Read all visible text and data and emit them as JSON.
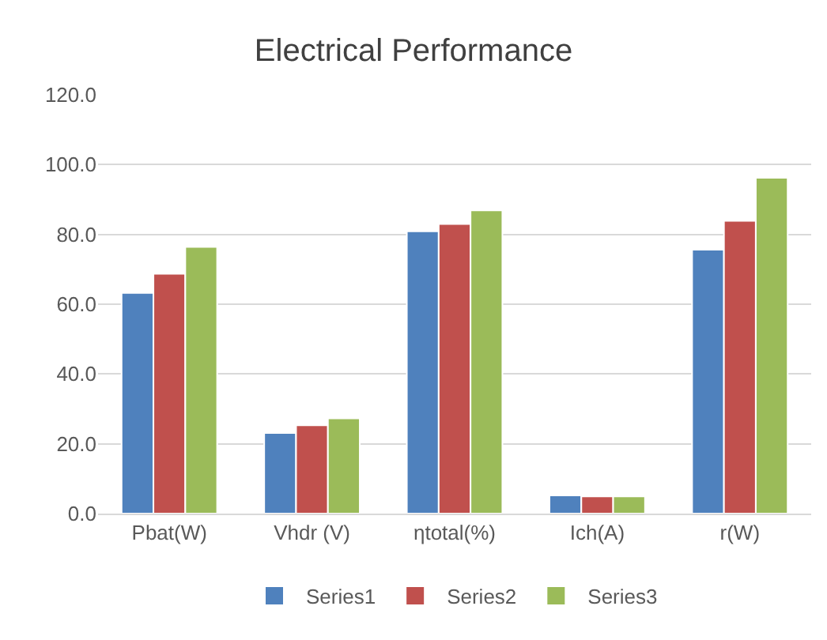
{
  "chart_data": {
    "type": "bar",
    "title": "Electrical Performance",
    "categories": [
      "Pbat(W)",
      "Vhdr (V)",
      "ηtotal(%)",
      "Ich(A)",
      "r(W)"
    ],
    "series": [
      {
        "name": "Series1",
        "color": "#4f81bd",
        "values": [
          63.2,
          23.1,
          80.9,
          5.2,
          75.6
        ]
      },
      {
        "name": "Series2",
        "color": "#c0504d",
        "values": [
          68.7,
          25.3,
          83.0,
          4.9,
          83.9
        ]
      },
      {
        "name": "Series3",
        "color": "#9bbb59",
        "values": [
          76.4,
          27.3,
          86.9,
          4.9,
          96.2
        ]
      }
    ],
    "ylim": [
      0,
      120
    ],
    "yticks": [
      {
        "value": 0,
        "label": "0.0"
      },
      {
        "value": 20,
        "label": "20.0"
      },
      {
        "value": 40,
        "label": "40.0"
      },
      {
        "value": 60,
        "label": "60.0"
      },
      {
        "value": 80,
        "label": "80.0"
      },
      {
        "value": 100,
        "label": "100.0"
      },
      {
        "value": 120,
        "label": "120.0"
      }
    ],
    "grid": "y",
    "legend": "bottom"
  }
}
